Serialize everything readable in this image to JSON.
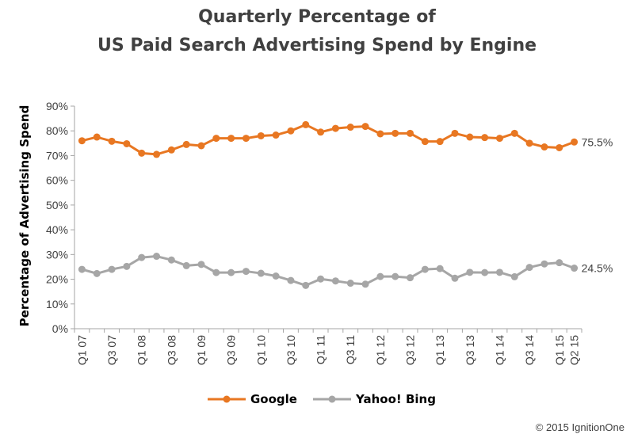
{
  "chart_data": {
    "type": "line",
    "title_line1": "Quarterly Percentage of",
    "title_line2": "US Paid Search Advertising Spend by Engine",
    "ylabel": "Percentage of Advertising Spend",
    "xlabel": "",
    "ylim": [
      0,
      90
    ],
    "yticks": [
      "0%",
      "10%",
      "20%",
      "30%",
      "40%",
      "50%",
      "60%",
      "70%",
      "80%",
      "90%"
    ],
    "x": [
      "Q1 07",
      "Q2 07",
      "Q3 07",
      "Q4 07",
      "Q1 08",
      "Q2 08",
      "Q3 08",
      "Q4 08",
      "Q1 09",
      "Q2 09",
      "Q3 09",
      "Q4 09",
      "Q1 10",
      "Q2 10",
      "Q3 10",
      "Q4 10",
      "Q1 11",
      "Q2 11",
      "Q3 11",
      "Q4 11",
      "Q1 12",
      "Q2 12",
      "Q3 12",
      "Q4 12",
      "Q1 13",
      "Q2 13",
      "Q3 13",
      "Q4 13",
      "Q1 14",
      "Q2 14",
      "Q3 14",
      "Q4 14",
      "Q1 15",
      "Q2 15"
    ],
    "xtick_labels": [
      "Q1 07",
      "Q3 07",
      "Q1 08",
      "Q3 08",
      "Q1 09",
      "Q3 09",
      "Q1 10",
      "Q3 10",
      "Q1 11",
      "Q3 11",
      "Q1 12",
      "Q3 12",
      "Q1 13",
      "Q3 13",
      "Q1 14",
      "Q3 14",
      "Q1 15",
      "Q2 15"
    ],
    "series": [
      {
        "name": "Google",
        "color": "#E87722",
        "values": [
          76.0,
          77.5,
          75.8,
          74.8,
          71.0,
          70.5,
          72.3,
          74.5,
          74.0,
          77.0,
          77.0,
          77.0,
          78.0,
          78.3,
          80.0,
          82.5,
          79.5,
          81.0,
          81.5,
          81.8,
          78.8,
          79.0,
          79.0,
          75.7,
          75.7,
          79.0,
          77.5,
          77.3,
          77.0,
          79.0,
          75.0,
          73.5,
          73.2,
          75.5
        ],
        "end_label": "75.5%"
      },
      {
        "name": "Yahoo! Bing",
        "color": "#A6A6A6",
        "values": [
          24.0,
          22.3,
          24.0,
          25.2,
          28.8,
          29.3,
          27.8,
          25.5,
          26.0,
          22.7,
          22.7,
          23.2,
          22.4,
          21.3,
          19.5,
          17.5,
          20.1,
          19.3,
          18.4,
          18.0,
          21.1,
          21.1,
          20.6,
          24.0,
          24.3,
          20.4,
          22.8,
          22.7,
          22.8,
          21.0,
          24.8,
          26.2,
          26.7,
          24.5
        ],
        "end_label": "24.5%"
      }
    ],
    "legend_position": "bottom"
  },
  "footer": {
    "copyright": "© 2015 IgnitionOne"
  }
}
